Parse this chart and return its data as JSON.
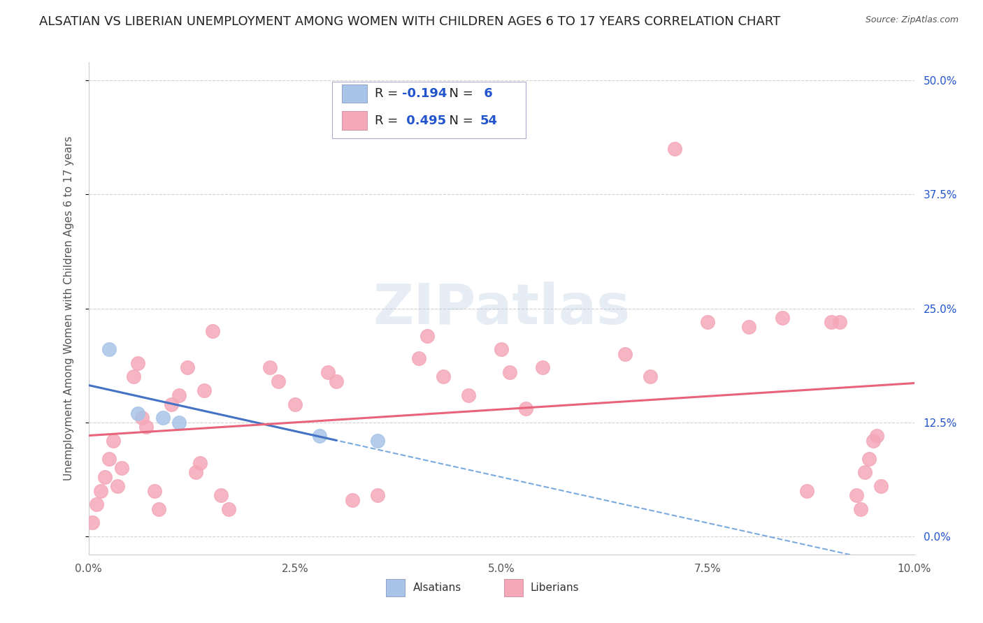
{
  "title": "ALSATIAN VS LIBERIAN UNEMPLOYMENT AMONG WOMEN WITH CHILDREN AGES 6 TO 17 YEARS CORRELATION CHART",
  "source": "Source: ZipAtlas.com",
  "ylabel": "Unemployment Among Women with Children Ages 6 to 17 years",
  "xlabel_values": [
    0.0,
    2.5,
    5.0,
    7.5,
    10.0
  ],
  "ylabel_values": [
    0.0,
    12.5,
    25.0,
    37.5,
    50.0
  ],
  "xlim": [
    0.0,
    10.0
  ],
  "ylim": [
    -2.0,
    52.0
  ],
  "alsatian_R": -0.194,
  "alsatian_N": 6,
  "liberian_R": 0.495,
  "liberian_N": 54,
  "alsatian_color": "#a8c4e8",
  "liberian_color": "#f4a8b8",
  "alsatian_line_color": "#4472c4",
  "liberian_line_color": "#e8647a",
  "dashed_line_color": "#7aaae0",
  "alsatian_points": [
    [
      0.25,
      20.5
    ],
    [
      0.6,
      13.5
    ],
    [
      0.9,
      13.0
    ],
    [
      1.1,
      12.5
    ],
    [
      2.8,
      11.0
    ],
    [
      3.5,
      10.5
    ]
  ],
  "liberian_points": [
    [
      0.05,
      1.5
    ],
    [
      0.1,
      3.5
    ],
    [
      0.15,
      5.0
    ],
    [
      0.2,
      6.5
    ],
    [
      0.25,
      8.5
    ],
    [
      0.3,
      10.5
    ],
    [
      0.35,
      5.5
    ],
    [
      0.4,
      7.5
    ],
    [
      0.55,
      17.5
    ],
    [
      0.6,
      19.0
    ],
    [
      0.65,
      13.0
    ],
    [
      0.7,
      12.0
    ],
    [
      0.8,
      5.0
    ],
    [
      0.85,
      3.0
    ],
    [
      1.0,
      14.5
    ],
    [
      1.1,
      15.5
    ],
    [
      1.2,
      18.5
    ],
    [
      1.3,
      7.0
    ],
    [
      1.35,
      8.0
    ],
    [
      1.4,
      16.0
    ],
    [
      1.5,
      22.5
    ],
    [
      1.6,
      4.5
    ],
    [
      1.7,
      3.0
    ],
    [
      2.2,
      18.5
    ],
    [
      2.3,
      17.0
    ],
    [
      2.5,
      14.5
    ],
    [
      2.9,
      18.0
    ],
    [
      3.0,
      17.0
    ],
    [
      3.2,
      4.0
    ],
    [
      3.5,
      4.5
    ],
    [
      4.0,
      19.5
    ],
    [
      4.1,
      22.0
    ],
    [
      4.3,
      17.5
    ],
    [
      4.6,
      15.5
    ],
    [
      5.0,
      20.5
    ],
    [
      5.1,
      18.0
    ],
    [
      5.3,
      14.0
    ],
    [
      5.5,
      18.5
    ],
    [
      6.5,
      20.0
    ],
    [
      6.8,
      17.5
    ],
    [
      7.1,
      42.5
    ],
    [
      7.5,
      23.5
    ],
    [
      8.0,
      23.0
    ],
    [
      8.4,
      24.0
    ],
    [
      8.7,
      5.0
    ],
    [
      9.0,
      23.5
    ],
    [
      9.1,
      23.5
    ],
    [
      9.3,
      4.5
    ],
    [
      9.35,
      3.0
    ],
    [
      9.4,
      7.0
    ],
    [
      9.45,
      8.5
    ],
    [
      9.5,
      10.5
    ],
    [
      9.55,
      11.0
    ],
    [
      9.6,
      5.5
    ]
  ],
  "background_color": "#ffffff",
  "grid_color": "#cccccc",
  "legend_color": "#2255cc",
  "title_fontsize": 13,
  "axis_label_fontsize": 11,
  "tick_fontsize": 11,
  "source_fontsize": 9
}
